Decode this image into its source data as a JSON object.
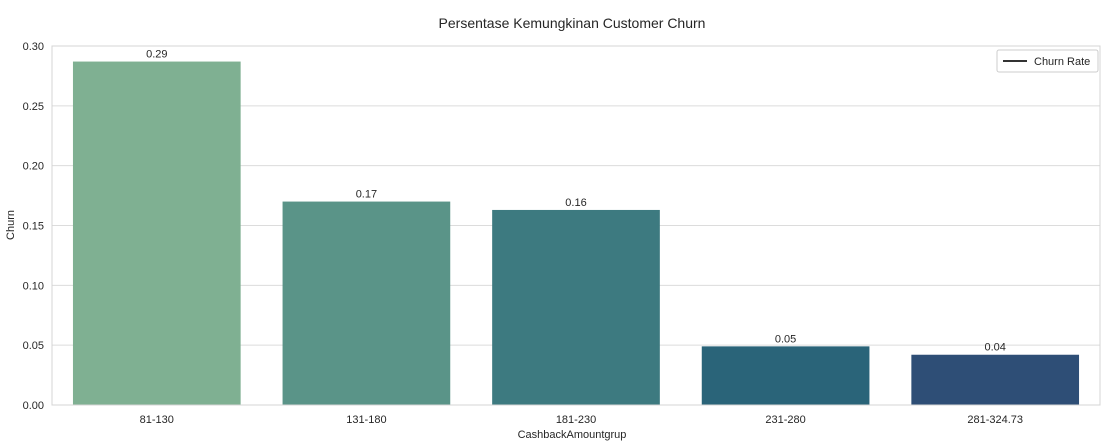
{
  "chart_data": {
    "type": "bar",
    "title": "Persentase Kemungkinan Customer Churn",
    "xlabel": "CashbackAmountgrup",
    "ylabel": "Churn",
    "categories": [
      "81-130",
      "131-180",
      "181-230",
      "231-280",
      "281-324.73"
    ],
    "values": [
      0.287,
      0.17,
      0.163,
      0.049,
      0.042
    ],
    "data_labels": [
      "0.29",
      "0.17",
      "0.16",
      "0.05",
      "0.04"
    ],
    "colors": [
      "#7fb092",
      "#5a9488",
      "#3d7a80",
      "#2a6479",
      "#2e4e76"
    ],
    "ylim": [
      0,
      0.3
    ],
    "yticks": [
      "0.00",
      "0.05",
      "0.10",
      "0.15",
      "0.20",
      "0.25",
      "0.30"
    ],
    "grid": true,
    "legend": {
      "placement": "top-right",
      "entries": [
        "Churn Rate"
      ]
    }
  }
}
